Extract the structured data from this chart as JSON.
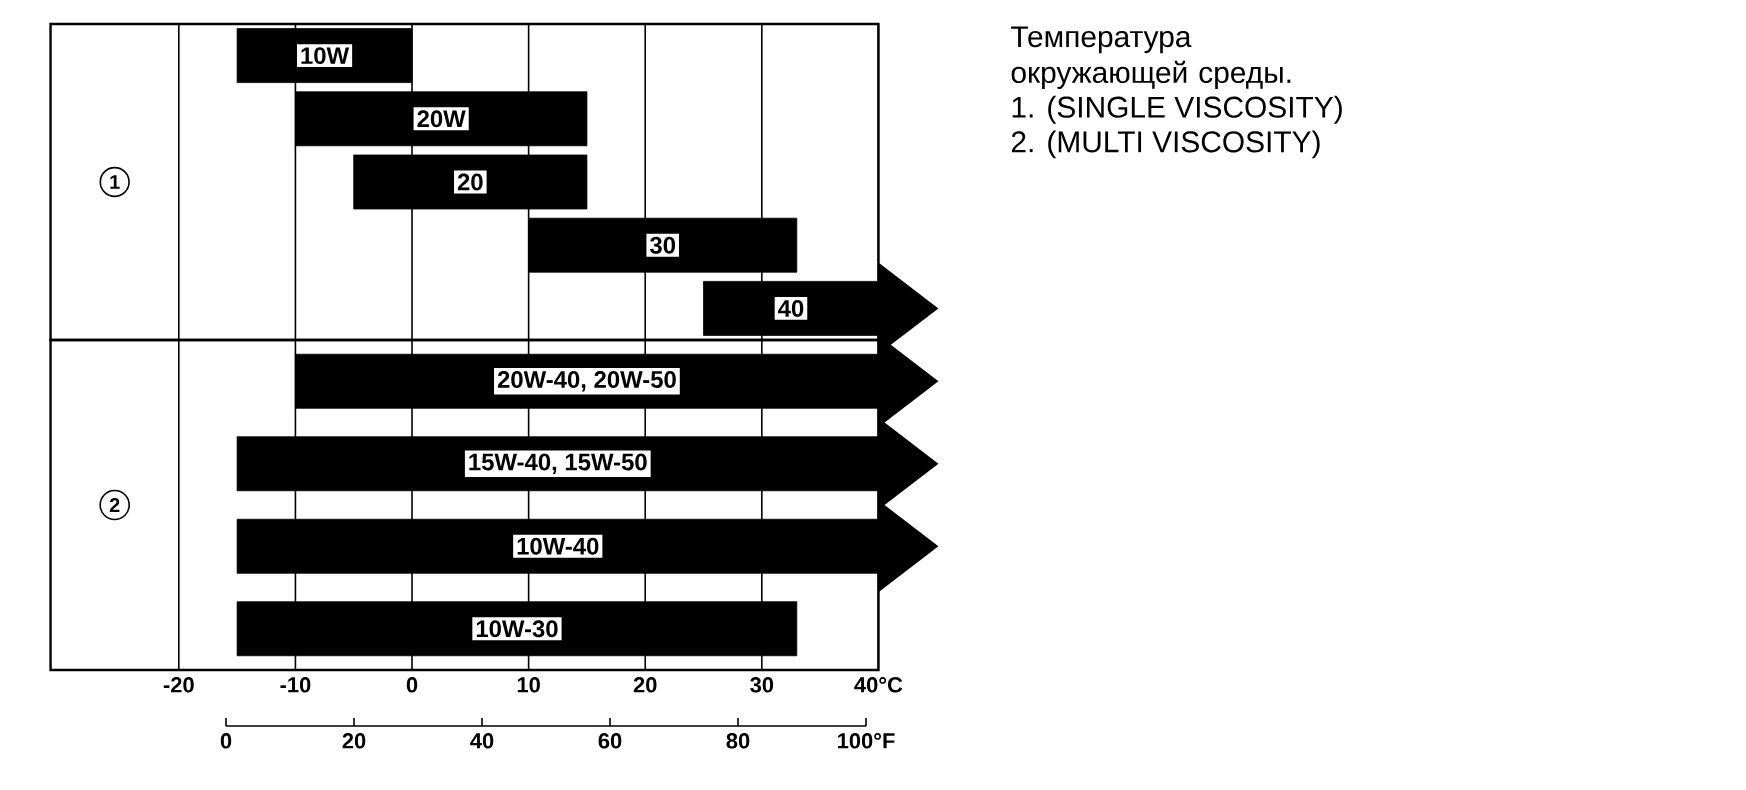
{
  "chart_data": [
    {
      "type": "bar",
      "orientation": "horizontal",
      "color": "#000000",
      "categories": [
        "10W",
        "20W",
        "20",
        "30",
        "40"
      ],
      "values": [
        15,
        25,
        20,
        23,
        15
      ],
      "base": [
        -15,
        -10,
        -5,
        10,
        25
      ],
      "xlim": [
        -31,
        40
      ],
      "xticks": [
        -20,
        -10,
        0,
        10,
        20,
        30,
        40
      ],
      "tick_labels": false,
      "grid": "x",
      "annotations": [
        "1",
        "Температура окружающей среды.",
        "1. (SINGLE VISCOSITY)",
        "2. (MULTI   VISCOSITY)"
      ]
    },
    {
      "type": "bar",
      "orientation": "horizontal",
      "color": "#000000",
      "categories": [
        "20W-40, 20W-50",
        "15W-40, 15W-50",
        "10W-40",
        "10W-30"
      ],
      "values": [
        50,
        55,
        55,
        48
      ],
      "base": [
        -10,
        -15,
        -15,
        -15
      ],
      "xlim": [
        -31,
        40
      ],
      "xticks": [
        -20,
        -10,
        0,
        10,
        20,
        30,
        {
          "value": 40,
          "label": "40°C"
        }
      ],
      "x2lim": [
        0,
        100
      ],
      "x2ticks": [
        0,
        20,
        40,
        60,
        80,
        {
          "value": 100,
          "label": "100°F"
        }
      ],
      "grid": "x",
      "annotations": [
        "2"
      ]
    }
  ]
}
